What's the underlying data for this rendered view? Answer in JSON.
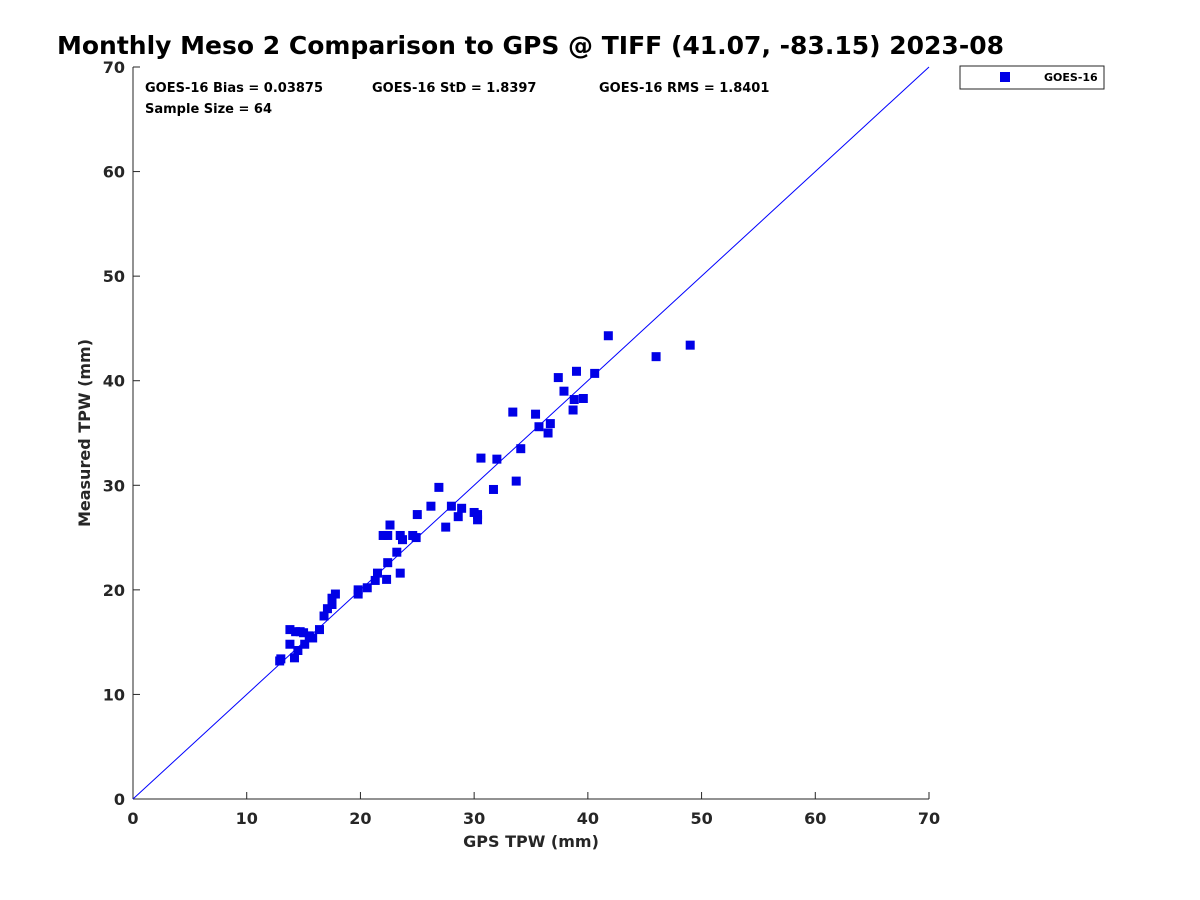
{
  "chart_data": {
    "type": "scatter",
    "title": "Monthly Meso 2 Comparison to GPS @ TIFF (41.07, -83.15) 2023-08",
    "xlabel": "GPS TPW (mm)",
    "ylabel": "Measured TPW (mm)",
    "xlim": [
      0,
      70
    ],
    "ylim": [
      0,
      70
    ],
    "xticks": [
      "0",
      "10",
      "20",
      "30",
      "40",
      "50",
      "60",
      "70"
    ],
    "yticks": [
      "0",
      "10",
      "20",
      "30",
      "40",
      "50",
      "60",
      "70"
    ],
    "grid": false,
    "legend_position": "top-right-outside",
    "reference_line": {
      "x": [
        0,
        70
      ],
      "y": [
        0,
        70
      ],
      "color": "#0000ff"
    },
    "annotations": {
      "bias": "GOES-16 Bias = 0.03875",
      "std": "GOES-16 StD = 1.8397",
      "rms": "GOES-16 RMS = 1.8401",
      "sample_size": "Sample Size = 64"
    },
    "series": [
      {
        "name": "GOES-16",
        "color": "#0000e6",
        "marker": "square",
        "points": [
          [
            12.9,
            13.2
          ],
          [
            13.0,
            13.4
          ],
          [
            13.8,
            14.8
          ],
          [
            13.8,
            16.2
          ],
          [
            14.2,
            13.5
          ],
          [
            14.3,
            16.0
          ],
          [
            14.5,
            14.2
          ],
          [
            14.7,
            16.0
          ],
          [
            15.0,
            15.9
          ],
          [
            15.1,
            14.8
          ],
          [
            15.5,
            15.6
          ],
          [
            15.8,
            15.4
          ],
          [
            16.4,
            16.2
          ],
          [
            16.8,
            17.5
          ],
          [
            17.1,
            18.2
          ],
          [
            17.5,
            18.6
          ],
          [
            17.5,
            19.2
          ],
          [
            17.8,
            19.6
          ],
          [
            19.8,
            20.0
          ],
          [
            19.8,
            19.6
          ],
          [
            20.6,
            20.2
          ],
          [
            21.3,
            20.9
          ],
          [
            21.5,
            21.6
          ],
          [
            22.0,
            25.2
          ],
          [
            22.3,
            21.0
          ],
          [
            22.4,
            22.6
          ],
          [
            22.4,
            25.2
          ],
          [
            22.6,
            26.2
          ],
          [
            23.2,
            23.6
          ],
          [
            23.5,
            25.2
          ],
          [
            23.5,
            21.6
          ],
          [
            23.7,
            24.8
          ],
          [
            24.6,
            25.2
          ],
          [
            24.9,
            25.0
          ],
          [
            25.0,
            27.2
          ],
          [
            26.2,
            28.0
          ],
          [
            26.9,
            29.8
          ],
          [
            27.5,
            26.0
          ],
          [
            28.0,
            28.0
          ],
          [
            28.6,
            27.0
          ],
          [
            28.9,
            27.8
          ],
          [
            30.0,
            27.4
          ],
          [
            30.3,
            27.2
          ],
          [
            30.3,
            26.7
          ],
          [
            30.6,
            32.6
          ],
          [
            31.7,
            29.6
          ],
          [
            33.4,
            37.0
          ],
          [
            33.7,
            30.4
          ],
          [
            34.1,
            33.5
          ],
          [
            35.4,
            36.8
          ],
          [
            35.7,
            35.6
          ],
          [
            36.5,
            35.0
          ],
          [
            36.7,
            35.9
          ],
          [
            37.4,
            40.3
          ],
          [
            37.9,
            39.0
          ],
          [
            38.7,
            37.2
          ],
          [
            38.8,
            38.2
          ],
          [
            39.0,
            40.9
          ],
          [
            39.6,
            38.3
          ],
          [
            40.6,
            40.7
          ],
          [
            41.8,
            44.3
          ],
          [
            46.0,
            42.3
          ],
          [
            49.0,
            43.4
          ],
          [
            32.0,
            32.5
          ]
        ]
      }
    ]
  }
}
